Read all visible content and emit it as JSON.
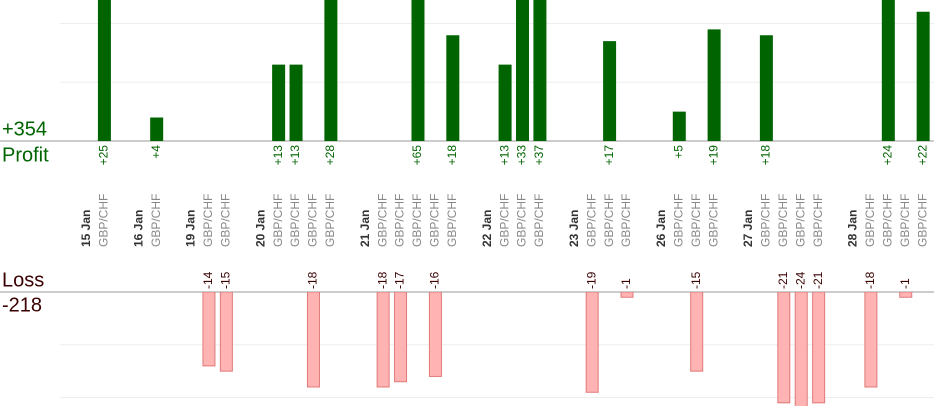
{
  "summary": {
    "profit_total": {
      "value": 354,
      "label": "+354"
    },
    "profit_label": "Profit",
    "loss_label": "Loss",
    "loss_total": -218
  },
  "chart_data": {
    "type": "trades",
    "profit_color": "#006400",
    "loss_color": "#ffb3b3",
    "profit_ylim": [
      0,
      24
    ],
    "loss_ylim": [
      0,
      -21.6
    ],
    "profit_yticks": [
      10,
      20
    ],
    "loss_yticks": [
      -10,
      -20
    ],
    "days": [
      {
        "date": "15 Jan",
        "trades": [
          {
            "pair": "GBP/CHF",
            "value": 25,
            "label": "+25"
          }
        ]
      },
      {
        "date": "16 Jan",
        "trades": [
          {
            "pair": "GBP/CHF",
            "value": 4,
            "label": "+4"
          }
        ]
      },
      {
        "date": "19 Jan",
        "trades": [
          {
            "pair": "GBP/CHF",
            "value": -14
          },
          {
            "pair": "GBP/CHF",
            "value": -15
          }
        ]
      },
      {
        "date": "20 Jan",
        "trades": [
          {
            "pair": "GBP/CHF",
            "value": 13,
            "label": "+13"
          },
          {
            "pair": "GBP/CHF",
            "value": 13,
            "label": "+13"
          },
          {
            "pair": "GBP/CHF",
            "value": -18
          },
          {
            "pair": "GBP/CHF",
            "value": 28,
            "label": "+28"
          }
        ]
      },
      {
        "date": "21 Jan",
        "trades": [
          {
            "pair": "GBP/CHF",
            "value": -18
          },
          {
            "pair": "GBP/CHF",
            "value": -17
          },
          {
            "pair": "GBP/CHF",
            "value": 65,
            "label": "+65"
          },
          {
            "pair": "GBP/CHF",
            "value": -16
          },
          {
            "pair": "GBP/CHF",
            "value": 18,
            "label": "+18"
          }
        ]
      },
      {
        "date": "22 Jan",
        "trades": [
          {
            "pair": "GBP/CHF",
            "value": 13,
            "label": "+13"
          },
          {
            "pair": "GBP/CHF",
            "value": 33,
            "label": "+33"
          },
          {
            "pair": "GBP/CHF",
            "value": 37,
            "label": "+37"
          }
        ]
      },
      {
        "date": "23 Jan",
        "trades": [
          {
            "pair": "GBP/CHF",
            "value": -19
          },
          {
            "pair": "GBP/CHF",
            "value": 17,
            "label": "+17"
          },
          {
            "pair": "GBP/CHF",
            "value": -1
          }
        ]
      },
      {
        "date": "26 Jan",
        "trades": [
          {
            "pair": "GBP/CHF",
            "value": 5,
            "label": "+5"
          },
          {
            "pair": "GBP/CHF",
            "value": -15
          },
          {
            "pair": "GBP/CHF",
            "value": 19,
            "label": "+19"
          }
        ]
      },
      {
        "date": "27 Jan",
        "trades": [
          {
            "pair": "GBP/CHF",
            "value": 18,
            "label": "+18"
          },
          {
            "pair": "GBP/CHF",
            "value": -21
          },
          {
            "pair": "GBP/CHF",
            "value": -24
          },
          {
            "pair": "GBP/CHF",
            "value": -21
          }
        ]
      },
      {
        "date": "28 Jan",
        "trades": [
          {
            "pair": "GBP/CHF",
            "value": -18
          },
          {
            "pair": "GBP/CHF",
            "value": 24,
            "label": "+24"
          },
          {
            "pair": "GBP/CHF",
            "value": -1
          },
          {
            "pair": "GBP/CHF",
            "value": 22,
            "label": "+22"
          }
        ]
      }
    ]
  }
}
